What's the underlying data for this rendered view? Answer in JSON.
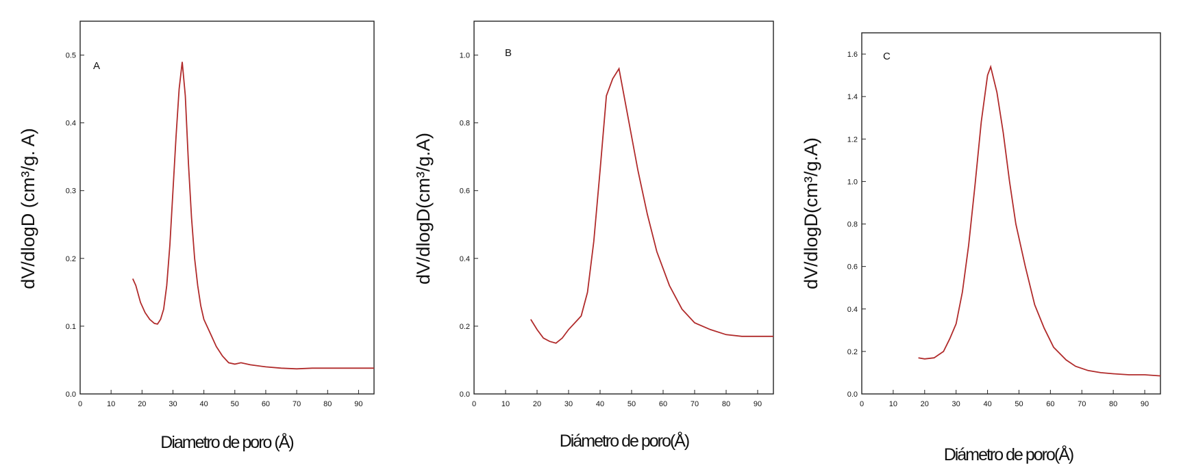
{
  "chart_data": [
    {
      "type": "line",
      "panel_label": "A",
      "xlabel": "Diametro de poro (Å)",
      "ylabel": "dV/dlogD (cm³/g. A)",
      "xlim": [
        0,
        95
      ],
      "ylim": [
        0,
        0.55
      ],
      "x_ticks": [
        0,
        10,
        20,
        30,
        40,
        50,
        60,
        70,
        80,
        90
      ],
      "x_tick_labels": [
        "0",
        "10",
        "20",
        "30",
        "40",
        "50",
        "60",
        "70",
        "80",
        "90"
      ],
      "y_ticks": [
        0,
        0.1,
        0.2,
        0.3,
        0.4,
        0.5
      ],
      "y_tick_labels": [
        "0.0",
        "0.1",
        "0.2",
        "0.3",
        "0.4",
        "0.5"
      ],
      "grid": false,
      "line_color": "#b02a2a",
      "series": [
        {
          "x": [
            17,
            18,
            19.5,
            21,
            22.5,
            24,
            25,
            26,
            27,
            28,
            29,
            30,
            31,
            32,
            33,
            34,
            35,
            36,
            37,
            38,
            39,
            40,
            42,
            44,
            46,
            48,
            50,
            52,
            55,
            60,
            65,
            70,
            75,
            80,
            85,
            90,
            95
          ],
          "y": [
            0.17,
            0.16,
            0.135,
            0.12,
            0.11,
            0.104,
            0.103,
            0.11,
            0.125,
            0.16,
            0.22,
            0.3,
            0.38,
            0.45,
            0.49,
            0.44,
            0.34,
            0.26,
            0.2,
            0.16,
            0.13,
            0.11,
            0.09,
            0.07,
            0.056,
            0.046,
            0.044,
            0.046,
            0.043,
            0.04,
            0.038,
            0.037,
            0.038,
            0.038,
            0.038,
            0.038,
            0.038
          ]
        }
      ]
    },
    {
      "type": "line",
      "panel_label": "B",
      "xlabel": "Diámetro de poro(Å)",
      "ylabel": "dV/dlogD(cm³/g.A)",
      "xlim": [
        0,
        95
      ],
      "ylim": [
        0,
        1.1
      ],
      "x_ticks": [
        0,
        10,
        20,
        30,
        40,
        50,
        60,
        70,
        80,
        90
      ],
      "x_tick_labels": [
        "0",
        "10",
        "20",
        "30",
        "40",
        "50",
        "60",
        "70",
        "80",
        "90"
      ],
      "y_ticks": [
        0,
        0.2,
        0.4,
        0.6,
        0.8,
        1.0
      ],
      "y_tick_labels": [
        "0.0",
        "0.2",
        "0.4",
        "0.6",
        "0.8",
        "1.0"
      ],
      "grid": false,
      "line_color": "#b02a2a",
      "series": [
        {
          "x": [
            18,
            20,
            22,
            24,
            26,
            28,
            30,
            32,
            34,
            36,
            38,
            40,
            42,
            44,
            46,
            48,
            50,
            52,
            55,
            58,
            62,
            66,
            70,
            75,
            80,
            85,
            90,
            95
          ],
          "y": [
            0.22,
            0.19,
            0.165,
            0.155,
            0.15,
            0.165,
            0.19,
            0.21,
            0.23,
            0.3,
            0.45,
            0.66,
            0.88,
            0.93,
            0.96,
            0.86,
            0.76,
            0.66,
            0.53,
            0.42,
            0.32,
            0.25,
            0.21,
            0.19,
            0.175,
            0.17,
            0.17,
            0.17
          ]
        }
      ]
    },
    {
      "type": "line",
      "panel_label": "C",
      "xlabel": "Diámetro de poro(Å)",
      "ylabel": "dV/dlogD(cm³/g.A)",
      "xlim": [
        0,
        95
      ],
      "ylim": [
        0,
        1.7
      ],
      "x_ticks": [
        0,
        10,
        20,
        30,
        40,
        50,
        60,
        70,
        80,
        90
      ],
      "x_tick_labels": [
        "0",
        "10",
        "20",
        "30",
        "40",
        "50",
        "60",
        "70",
        "80",
        "90"
      ],
      "y_ticks": [
        0,
        0.2,
        0.4,
        0.6,
        0.8,
        1.0,
        1.2,
        1.4,
        1.6
      ],
      "y_tick_labels": [
        "0.0",
        "0.2",
        "0.4",
        "0.6",
        "0.8",
        "1.0",
        "1.2",
        "1.4",
        "1.6"
      ],
      "grid": false,
      "line_color": "#b02a2a",
      "series": [
        {
          "x": [
            18,
            20,
            23,
            26,
            28,
            30,
            32,
            34,
            36,
            38,
            40,
            41,
            43,
            45,
            47,
            49,
            52,
            55,
            58,
            61,
            65,
            68,
            72,
            76,
            80,
            85,
            90,
            95
          ],
          "y": [
            0.17,
            0.165,
            0.17,
            0.2,
            0.26,
            0.33,
            0.48,
            0.7,
            0.98,
            1.28,
            1.5,
            1.54,
            1.42,
            1.23,
            1.0,
            0.8,
            0.6,
            0.42,
            0.31,
            0.22,
            0.16,
            0.13,
            0.11,
            0.1,
            0.095,
            0.09,
            0.09,
            0.085
          ]
        }
      ]
    }
  ]
}
